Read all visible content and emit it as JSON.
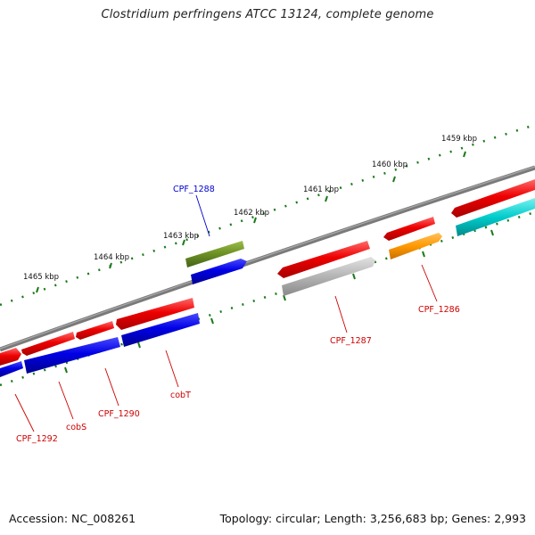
{
  "header": {
    "title": "Clostridium perfringens ATCC 13124, complete genome"
  },
  "footer": {
    "accession": "Accession: NC_008261",
    "stats": "Topology: circular; Length: 3,256,683 bp; Genes: 2,993"
  },
  "scale_labels": [
    "1465 kbp",
    "1464 kbp",
    "1463 kbp",
    "1462 kbp",
    "1461 kbp",
    "1460 kbp",
    "1459 kbp"
  ],
  "genes": [
    {
      "label": "CPF_1288",
      "color": "#0000cc"
    },
    {
      "label": "CPF_1287",
      "color": "#cc0000"
    },
    {
      "label": "CPF_1286",
      "color": "#cc0000"
    },
    {
      "label": "cobT",
      "color": "#cc0000"
    },
    {
      "label": "CPF_1290",
      "color": "#cc0000"
    },
    {
      "label": "cobS",
      "color": "#cc0000"
    },
    {
      "label": "CPF_1292",
      "color": "#cc0000"
    }
  ],
  "colors": {
    "backbone": "#777777",
    "ticks": "#1a7a1a",
    "red": "#e8000b",
    "blue": "#0000e6",
    "olive": "#6b8e23",
    "gray": "#b0b0b0",
    "orange": "#ff9900",
    "cyan": "#00cccc"
  }
}
